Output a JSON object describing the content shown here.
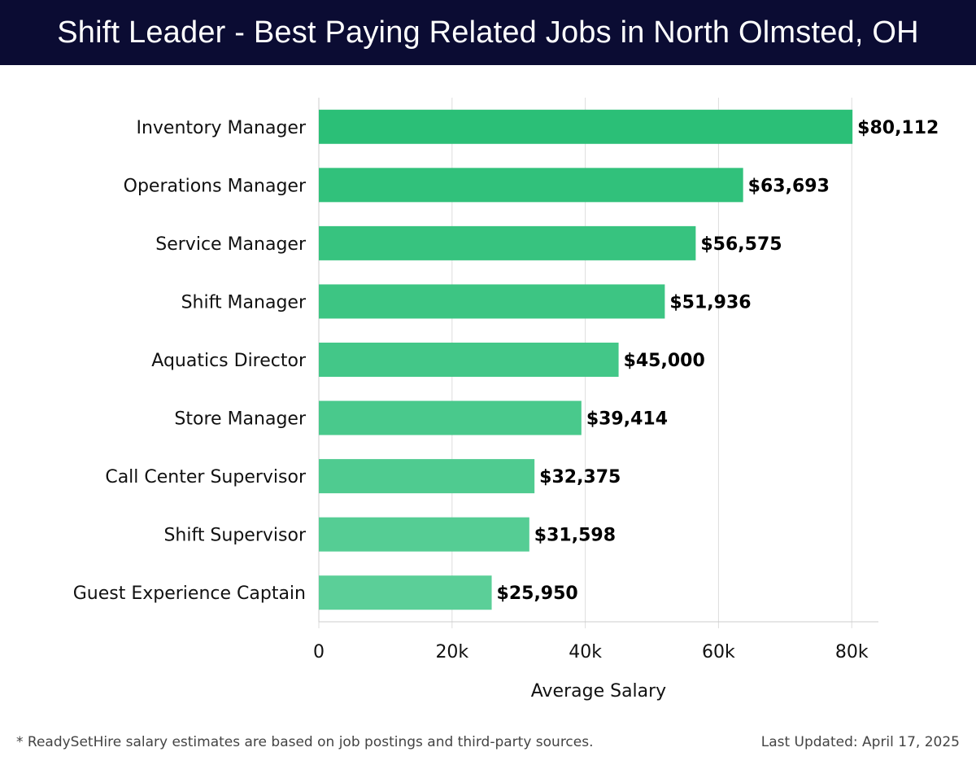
{
  "header": {
    "title": "Shift Leader - Best Paying Related Jobs in North Olmsted, OH"
  },
  "colors": {
    "header_bg": "#0b0c33",
    "bar_start": "#2bbf77",
    "bar_end": "#5bcf98",
    "grid": "#dddddd",
    "text": "#000000"
  },
  "chart_data": {
    "type": "bar",
    "orientation": "horizontal",
    "categories": [
      "Inventory Manager",
      "Operations Manager",
      "Service Manager",
      "Shift Manager",
      "Aquatics Director",
      "Store Manager",
      "Call Center Supervisor",
      "Shift Supervisor",
      "Guest Experience Captain"
    ],
    "values": [
      80112,
      63693,
      56575,
      51936,
      45000,
      39414,
      32375,
      31598,
      25950
    ],
    "value_labels": [
      "$80,112",
      "$63,693",
      "$56,575",
      "$51,936",
      "$45,000",
      "$39,414",
      "$32,375",
      "$31,598",
      "$25,950"
    ],
    "xlabel": "Average Salary",
    "ylabel": "",
    "xlim": [
      0,
      84000
    ],
    "xticks": [
      0,
      20000,
      40000,
      60000,
      80000
    ],
    "xtick_labels": [
      "0",
      "20k",
      "40k",
      "60k",
      "80k"
    ],
    "grid": true
  },
  "footer": {
    "note": "* ReadySetHire salary estimates are based on job postings and third-party sources.",
    "updated": "Last Updated: April 17, 2025"
  }
}
